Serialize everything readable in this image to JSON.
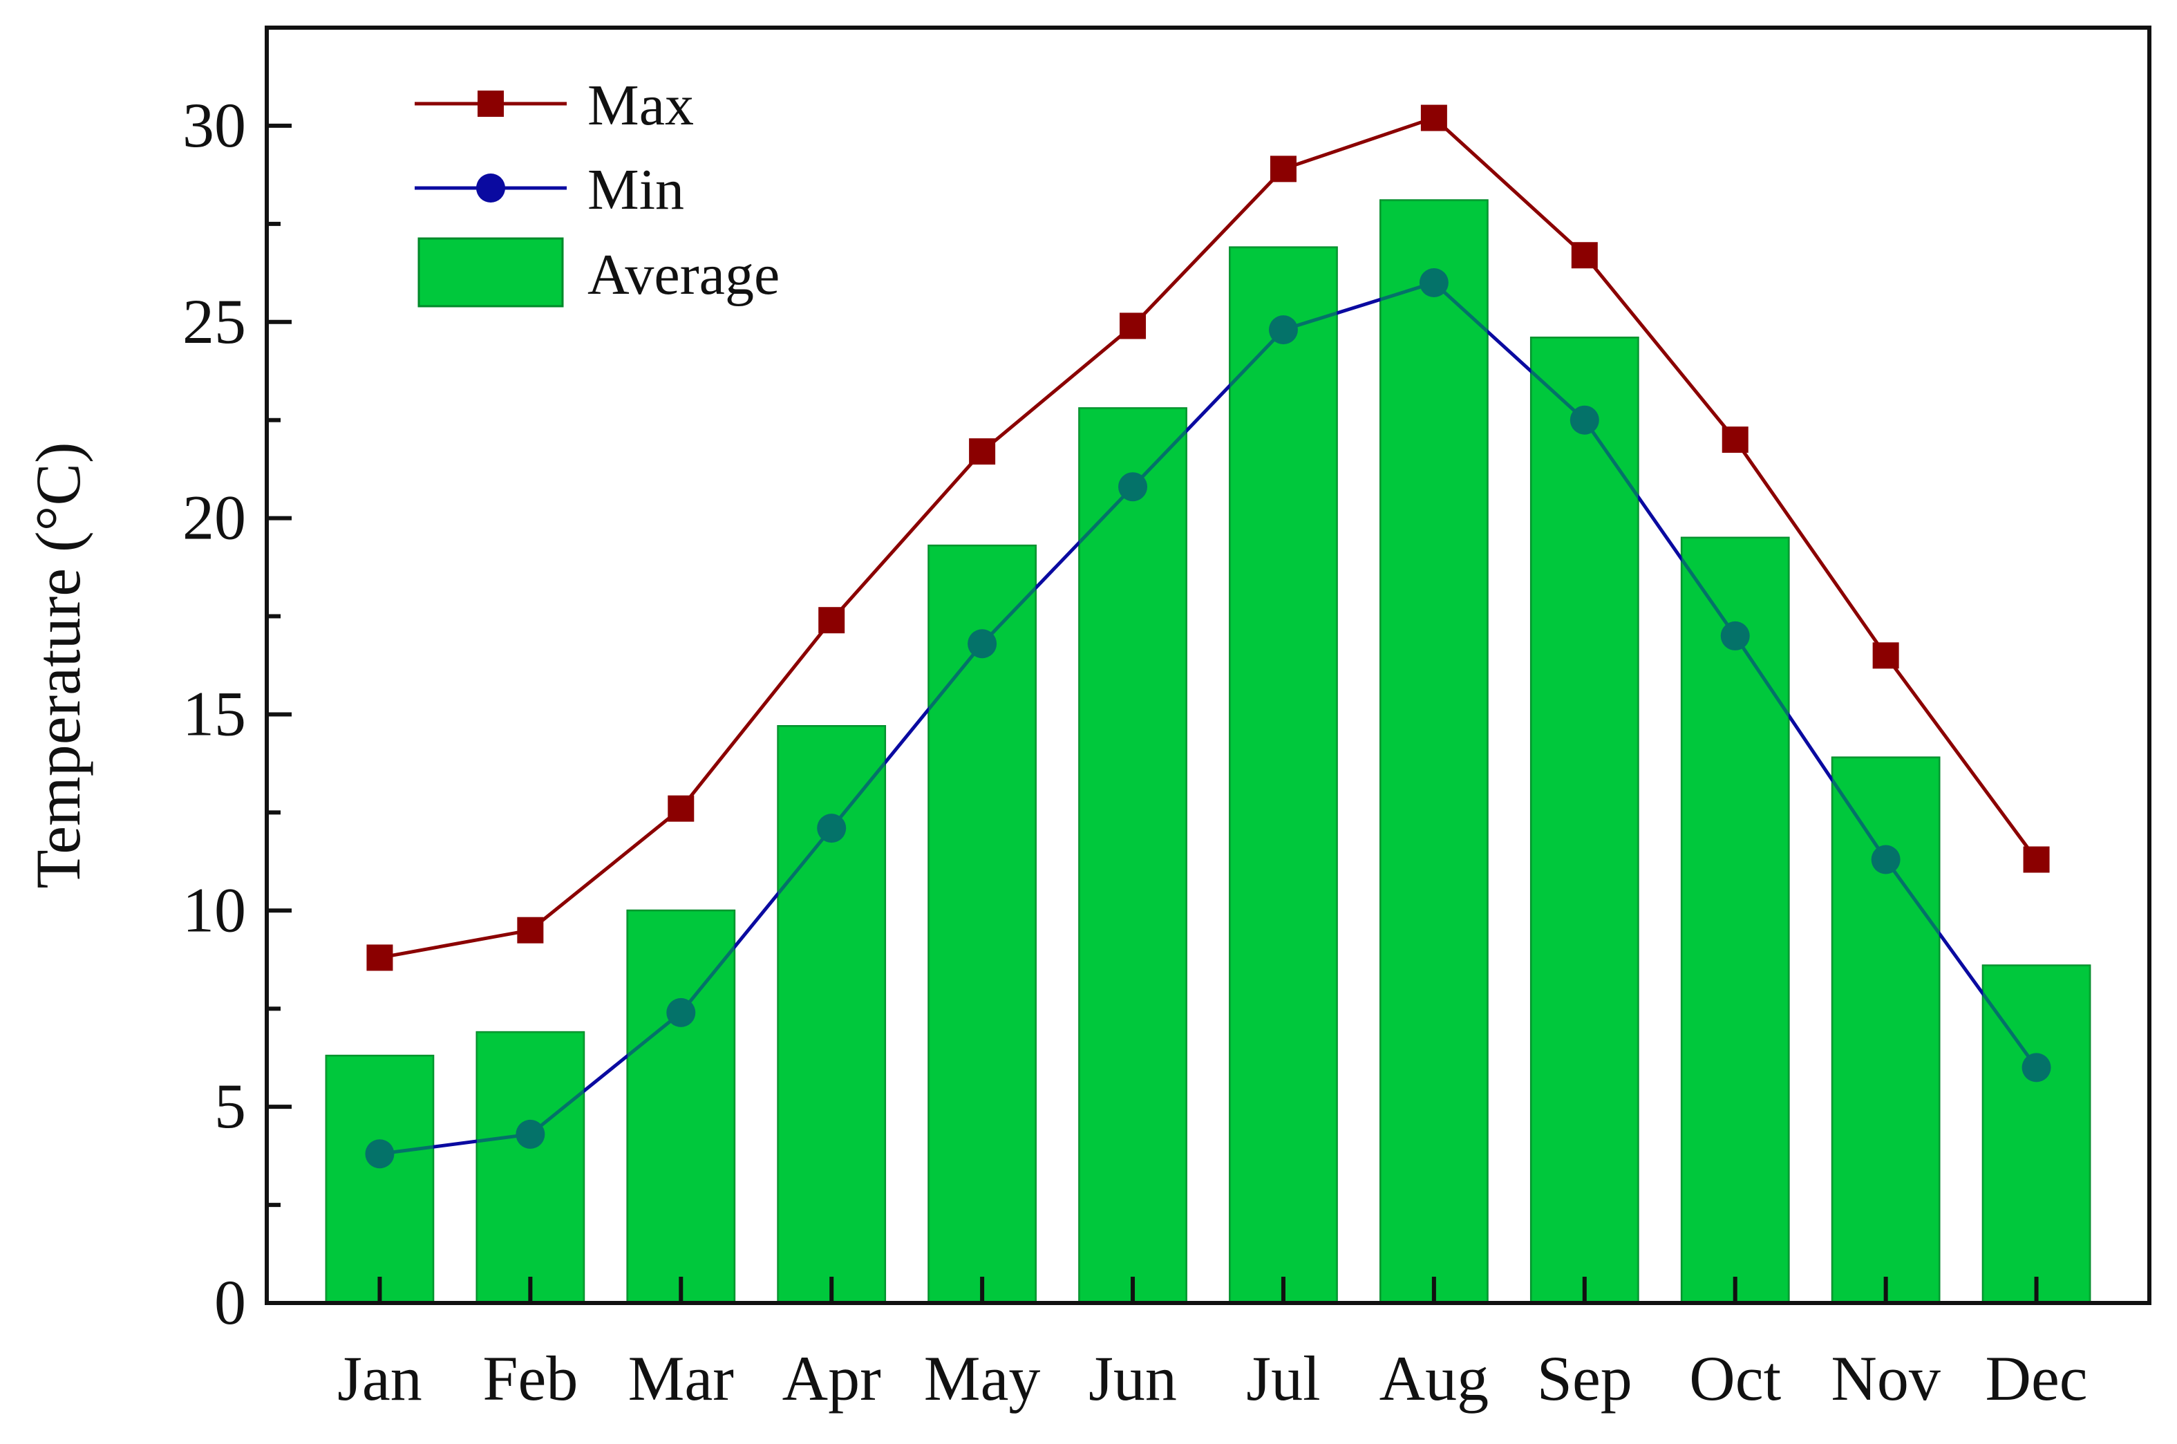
{
  "chart_data": {
    "type": "bar",
    "title": "",
    "xlabel": "",
    "ylabel": "Temperature (°C)",
    "ylim": [
      0,
      32.5
    ],
    "yticks": [
      0,
      5,
      10,
      15,
      20,
      25,
      30
    ],
    "categories": [
      "Jan",
      "Feb",
      "Mar",
      "Apr",
      "May",
      "Jun",
      "Jul",
      "Aug",
      "Sep",
      "Oct",
      "Nov",
      "Dec"
    ],
    "legend_position": "top-left",
    "grid": false,
    "series": [
      {
        "name": "Max",
        "type": "line",
        "marker": "square",
        "color": "#8b0000",
        "values": [
          8.8,
          9.5,
          12.6,
          17.4,
          21.7,
          24.9,
          28.9,
          30.2,
          26.7,
          22.0,
          16.5,
          11.3
        ]
      },
      {
        "name": "Min",
        "type": "line",
        "marker": "circle",
        "color": "#0a0aa0",
        "values": [
          3.8,
          4.3,
          7.4,
          12.1,
          16.8,
          20.8,
          24.8,
          26.0,
          22.5,
          17.0,
          11.3,
          6.0
        ]
      },
      {
        "name": "Average",
        "type": "bar",
        "color": "#00c83c",
        "values": [
          6.3,
          6.9,
          10.0,
          14.7,
          19.3,
          22.8,
          26.9,
          28.1,
          24.6,
          19.5,
          13.9,
          8.6
        ]
      }
    ]
  }
}
